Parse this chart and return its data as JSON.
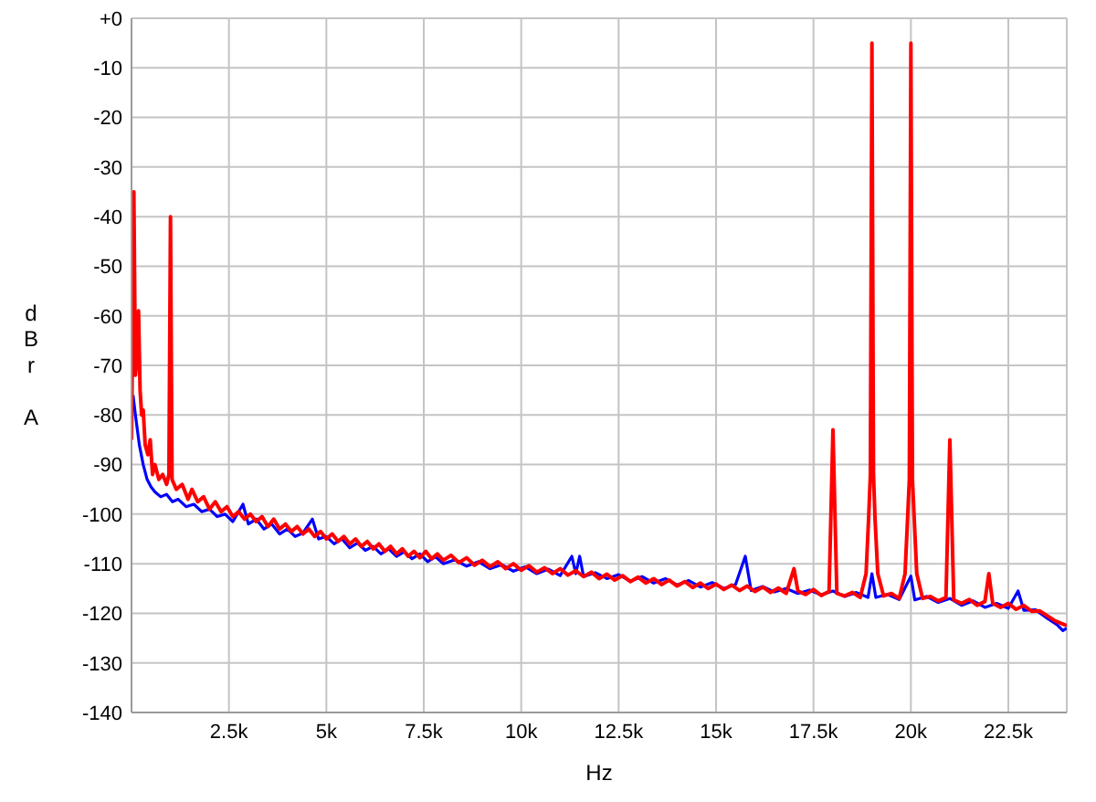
{
  "chart_data": {
    "type": "line",
    "xlabel": "Hz",
    "ylabel": "dBr A",
    "xlim": [
      0,
      24000
    ],
    "ylim": [
      -140,
      0
    ],
    "xticks": [
      {
        "value": 2500,
        "label": "2.5k"
      },
      {
        "value": 5000,
        "label": "5k"
      },
      {
        "value": 7500,
        "label": "7.5k"
      },
      {
        "value": 10000,
        "label": "10k"
      },
      {
        "value": 12500,
        "label": "12.5k"
      },
      {
        "value": 15000,
        "label": "15k"
      },
      {
        "value": 17500,
        "label": "17.5k"
      },
      {
        "value": 20000,
        "label": "20k"
      },
      {
        "value": 22500,
        "label": "22.5k"
      }
    ],
    "yticks": [
      {
        "value": 0,
        "label": "+0"
      },
      -10,
      -20,
      -30,
      -40,
      -50,
      -60,
      -70,
      -80,
      -90,
      -100,
      -110,
      -120,
      -130,
      -140
    ],
    "grid": true,
    "marker": "none",
    "line_style": "solid",
    "series": [
      {
        "color": "#0000ff",
        "x": [
          40,
          100,
          200,
          300,
          400,
          500,
          600,
          750,
          900,
          1050,
          1200,
          1400,
          1600,
          1800,
          2000,
          2200,
          2400,
          2600,
          2860,
          3000,
          3200,
          3400,
          3600,
          3800,
          4000,
          4200,
          4400,
          4640,
          4800,
          5000,
          5200,
          5400,
          5600,
          5800,
          6000,
          6200,
          6400,
          6600,
          6800,
          7000,
          7200,
          7400,
          7600,
          7800,
          8000,
          8300,
          8600,
          8900,
          9200,
          9500,
          9800,
          10100,
          10400,
          10700,
          11000,
          11300,
          11400,
          11500,
          11600,
          11900,
          12200,
          12500,
          12800,
          13100,
          13400,
          13700,
          14000,
          14300,
          14600,
          14900,
          15200,
          15500,
          15750,
          15900,
          16200,
          16500,
          16800,
          17100,
          17400,
          17700,
          18000,
          18300,
          18600,
          18900,
          19000,
          19100,
          19400,
          19700,
          20000,
          20100,
          20400,
          20700,
          21000,
          21300,
          21600,
          21900,
          22200,
          22500,
          22750,
          22900,
          23200,
          23500,
          23750,
          23900,
          24000
        ],
        "values": [
          -76,
          -80,
          -86,
          -90,
          -93,
          -94.5,
          -95.5,
          -96.5,
          -96,
          -97.5,
          -97,
          -98.5,
          -98,
          -99.5,
          -99,
          -100.5,
          -100,
          -101.5,
          -98,
          -102,
          -101,
          -103,
          -102,
          -104,
          -103,
          -104.5,
          -103.8,
          -101,
          -105,
          -104.5,
          -106,
          -105,
          -106.8,
          -105.8,
          -107.3,
          -106.5,
          -108,
          -107,
          -108.5,
          -107.6,
          -109,
          -108,
          -109.6,
          -108.6,
          -110,
          -109.2,
          -110.5,
          -109.6,
          -111,
          -110.2,
          -111.5,
          -110.6,
          -112,
          -111.1,
          -112.4,
          -108.5,
          -112,
          -108.5,
          -112.6,
          -111.8,
          -113,
          -112.2,
          -113.5,
          -112.6,
          -113.9,
          -113,
          -114.3,
          -113.4,
          -114.7,
          -113.8,
          -115,
          -114.2,
          -108.5,
          -115.4,
          -114.6,
          -115.7,
          -115,
          -116,
          -115.3,
          -116.3,
          -115.5,
          -116.6,
          -115.8,
          -116.8,
          -112,
          -116.8,
          -116.2,
          -117.2,
          -112.5,
          -117.3,
          -116.6,
          -117.8,
          -117,
          -118.4,
          -117.5,
          -118.8,
          -118,
          -119,
          -115.5,
          -119.4,
          -119.3,
          -121,
          -122.3,
          -123.5,
          -123
        ]
      },
      {
        "color": "#ff0000",
        "x": [
          0,
          60,
          100,
          150,
          180,
          220,
          260,
          300,
          350,
          420,
          480,
          540,
          600,
          700,
          800,
          900,
          960,
          1000,
          1040,
          1150,
          1300,
          1450,
          1550,
          1700,
          1850,
          2000,
          2150,
          2300,
          2450,
          2600,
          2750,
          2900,
          3050,
          3200,
          3350,
          3500,
          3650,
          3800,
          3950,
          4100,
          4250,
          4400,
          4550,
          4700,
          4850,
          5000,
          5150,
          5300,
          5450,
          5600,
          5750,
          5900,
          6050,
          6200,
          6350,
          6500,
          6650,
          6800,
          6950,
          7100,
          7250,
          7400,
          7550,
          7700,
          7850,
          8000,
          8200,
          8400,
          8600,
          8800,
          9000,
          9200,
          9400,
          9600,
          9800,
          10000,
          10200,
          10400,
          10600,
          10800,
          11000,
          11200,
          11400,
          11600,
          11800,
          12000,
          12200,
          12400,
          12600,
          12800,
          13000,
          13200,
          13400,
          13600,
          13800,
          14000,
          14200,
          14400,
          14600,
          14800,
          15000,
          15200,
          15400,
          15600,
          15800,
          16000,
          16200,
          16400,
          16600,
          16800,
          17000,
          17100,
          17300,
          17500,
          17700,
          17900,
          18000,
          18100,
          18300,
          18500,
          18700,
          18850,
          18920,
          18960,
          19000,
          19040,
          19080,
          19150,
          19300,
          19500,
          19700,
          19850,
          19920,
          19960,
          20000,
          20040,
          20080,
          20150,
          20300,
          20500,
          20700,
          20900,
          21000,
          21100,
          21300,
          21500,
          21700,
          21900,
          22000,
          22100,
          22300,
          22500,
          22700,
          22900,
          23100,
          23300,
          23500,
          23700,
          23850,
          24000
        ],
        "values": [
          -85,
          -35,
          -72,
          -68,
          -59,
          -75,
          -80,
          -79,
          -86,
          -88,
          -85,
          -92,
          -90,
          -93,
          -92,
          -94,
          -92,
          -40,
          -93,
          -95,
          -94,
          -97,
          -95,
          -97.5,
          -96.5,
          -99,
          -97.5,
          -99.5,
          -98.5,
          -100.5,
          -99.5,
          -101,
          -100,
          -101.5,
          -100.5,
          -102.5,
          -101,
          -103,
          -102,
          -103.5,
          -102.5,
          -104,
          -103,
          -104.5,
          -103.5,
          -105,
          -104,
          -105.5,
          -104.5,
          -106,
          -105,
          -106.5,
          -105.5,
          -107,
          -106,
          -107.5,
          -106.5,
          -108,
          -107,
          -108.5,
          -107.5,
          -108.8,
          -107.5,
          -109,
          -108,
          -109.3,
          -108.3,
          -109.8,
          -108.8,
          -110.3,
          -109.3,
          -110.6,
          -109.6,
          -111,
          -110,
          -111.3,
          -110.4,
          -111.7,
          -110.8,
          -112,
          -111,
          -112.3,
          -111.4,
          -112.6,
          -111.7,
          -113,
          -112.1,
          -113.3,
          -112.4,
          -113.6,
          -112.7,
          -113.9,
          -113,
          -114.2,
          -113.3,
          -114.5,
          -113.6,
          -114.8,
          -113.9,
          -115,
          -114.1,
          -115.2,
          -114.3,
          -115.4,
          -114.5,
          -115.6,
          -114.7,
          -115.8,
          -114.9,
          -116,
          -111,
          -115.5,
          -116.2,
          -115.2,
          -116.4,
          -115.6,
          -83,
          -116,
          -116.5,
          -115.8,
          -116.8,
          -112,
          -100,
          -92,
          -5,
          -92,
          -101,
          -112,
          -116.5,
          -116,
          -117,
          -112,
          -100,
          -93,
          -5,
          -93,
          -100,
          -112,
          -117,
          -116.6,
          -117.5,
          -116.8,
          -85,
          -117.3,
          -118,
          -117.2,
          -118.4,
          -117.6,
          -112,
          -118,
          -118.8,
          -118,
          -119.2,
          -118.4,
          -119.6,
          -119.5,
          -120.5,
          -121.5,
          -122,
          -122.5
        ]
      }
    ]
  }
}
